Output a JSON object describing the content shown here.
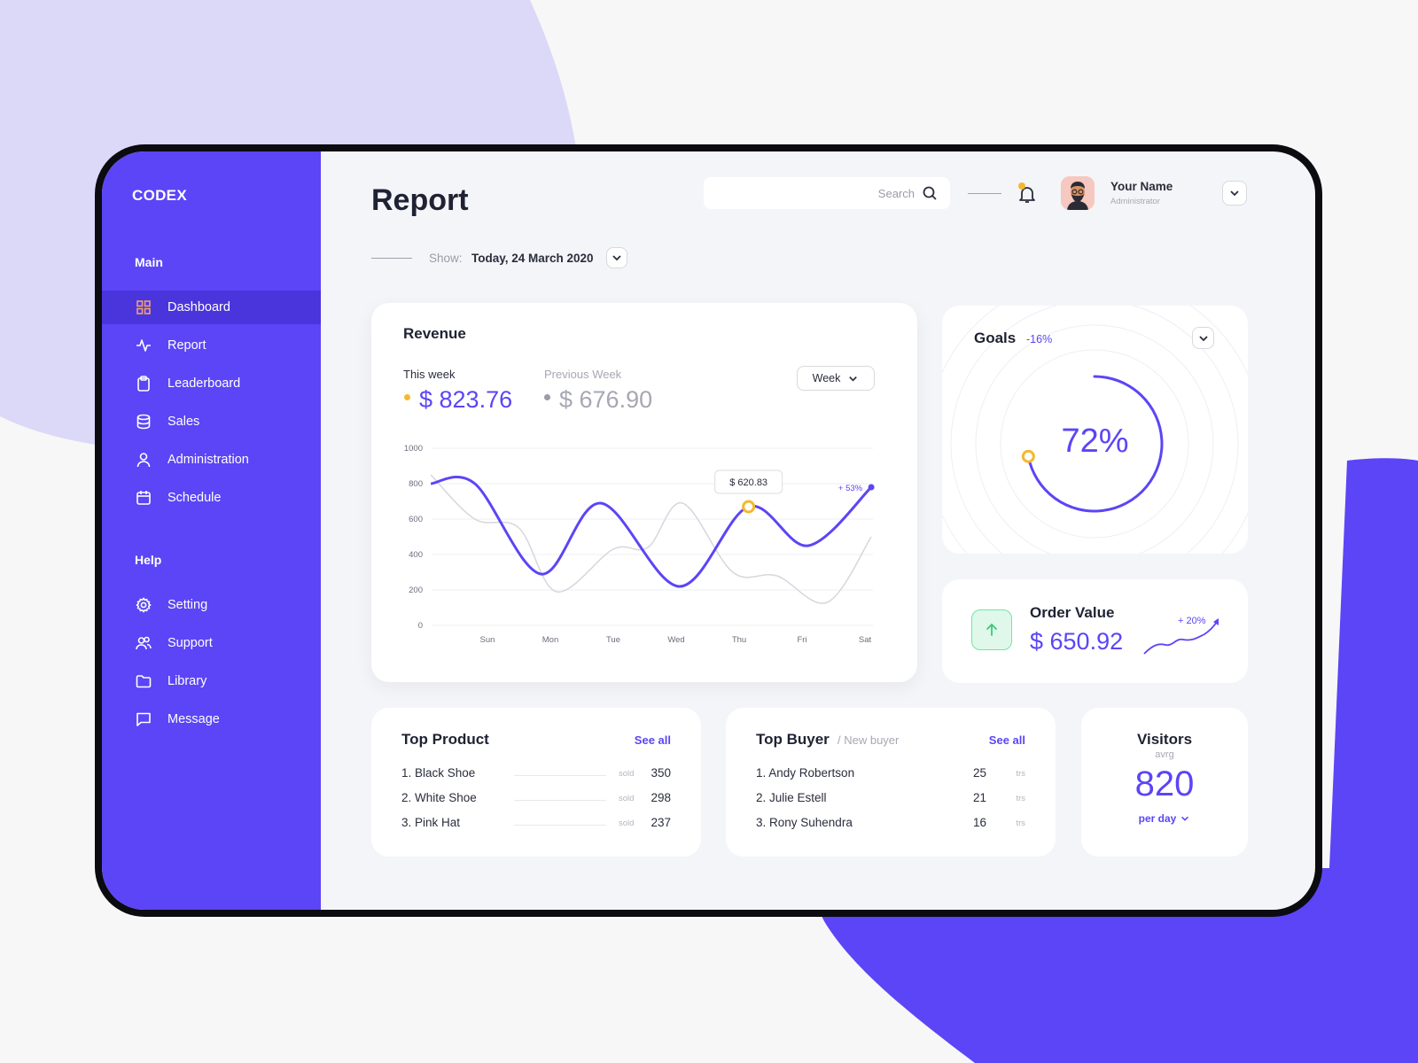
{
  "app": {
    "logo": "CODEX"
  },
  "sidebar": {
    "main_title": "Main",
    "main_items": [
      {
        "label": "Dashboard",
        "icon": "grid-icon",
        "active": true
      },
      {
        "label": "Report",
        "icon": "activity-icon"
      },
      {
        "label": "Leaderboard",
        "icon": "clipboard-icon"
      },
      {
        "label": "Sales",
        "icon": "database-icon"
      },
      {
        "label": "Administration",
        "icon": "user-icon"
      },
      {
        "label": "Schedule",
        "icon": "calendar-icon"
      }
    ],
    "help_title": "Help",
    "help_items": [
      {
        "label": "Setting",
        "icon": "gear-icon"
      },
      {
        "label": "Support",
        "icon": "users-icon"
      },
      {
        "label": "Library",
        "icon": "folder-icon"
      },
      {
        "label": "Message",
        "icon": "message-icon"
      }
    ]
  },
  "header": {
    "title": "Report",
    "search_placeholder": "Search",
    "user_name": "Your Name",
    "user_role": "Administrator",
    "show_label": "Show:",
    "show_date": "Today, 24 March 2020"
  },
  "colors": {
    "accent": "#5b45f6",
    "accent_dark": "#4a35dc",
    "highlight": "#f5b82e",
    "success": "#6ee7a5"
  },
  "revenue": {
    "title": "Revenue",
    "this_week_label": "This week",
    "this_week_value": "$ 823.76",
    "prev_week_label": "Previous Week",
    "prev_week_value": "$ 676.90",
    "period": "Week",
    "tooltip": "$ 620.83",
    "change": "+ 53%"
  },
  "chart_data": {
    "type": "line",
    "x": [
      "Sun",
      "Mon",
      "Tue",
      "Wed",
      "Thu",
      "Fri",
      "Sat"
    ],
    "ylim": [
      0,
      1000
    ],
    "yticks": [
      0,
      200,
      400,
      600,
      800,
      1000
    ],
    "series": [
      {
        "name": "This week",
        "points": [
          [
            -0.9,
            800
          ],
          [
            -0.2,
            800
          ],
          [
            0.85,
            290
          ],
          [
            1.8,
            690
          ],
          [
            3.05,
            220
          ],
          [
            4.15,
            670
          ],
          [
            5.1,
            450
          ],
          [
            6.1,
            780
          ]
        ]
      },
      {
        "name": "Previous Week",
        "points": [
          [
            -0.9,
            850
          ],
          [
            -0.2,
            600
          ],
          [
            0.5,
            550
          ],
          [
            1.1,
            190
          ],
          [
            2.0,
            430
          ],
          [
            2.55,
            440
          ],
          [
            3.1,
            690
          ],
          [
            3.9,
            300
          ],
          [
            4.6,
            280
          ],
          [
            5.4,
            130
          ],
          [
            6.1,
            500
          ]
        ]
      }
    ],
    "highlight_point": [
      4.15,
      670
    ]
  },
  "goals": {
    "title": "Goals",
    "change": "-16%",
    "percent_text": "72%",
    "percent": 0.72
  },
  "order": {
    "title": "Order Value",
    "value": "$ 650.92",
    "change": "+ 20%"
  },
  "top_product": {
    "title": "Top Product",
    "see_all": "See all",
    "sold_label": "sold",
    "items": [
      {
        "name": "1. Black Shoe",
        "value": "350"
      },
      {
        "name": "2. White Shoe",
        "value": "298"
      },
      {
        "name": "3. Pink Hat",
        "value": "237"
      }
    ]
  },
  "top_buyer": {
    "title": "Top Buyer",
    "subtitle": "/ New buyer",
    "see_all": "See all",
    "unit": "trs",
    "items": [
      {
        "name": "1. Andy Robertson",
        "value": "25"
      },
      {
        "name": "2. Julie Estell",
        "value": "21"
      },
      {
        "name": "3. Rony Suhendra",
        "value": "16"
      }
    ]
  },
  "visitors": {
    "title": "Visitors",
    "subtitle": "avrg",
    "value": "820",
    "period": "per day"
  }
}
